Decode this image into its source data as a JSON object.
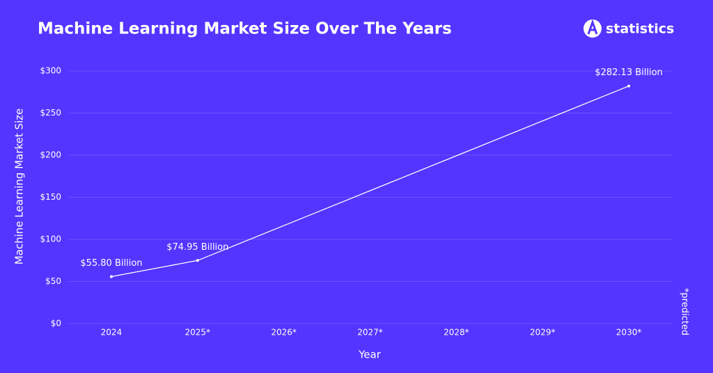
{
  "chart_data": {
    "type": "line",
    "title": "Machine Learning Market Size Over The Years",
    "brand": "statistics",
    "footnote": "*predicted",
    "x_label": "Year",
    "y_label": "Machine Learning Market Size",
    "categories": [
      "2024",
      "2025*",
      "2026*",
      "2027*",
      "2028*",
      "2029*",
      "2030*"
    ],
    "values": [
      55.8,
      74.95,
      116.39,
      157.82,
      199.26,
      240.69,
      282.13
    ],
    "value_labels": [
      "$55.80 Billion",
      "$74.95 Billion",
      null,
      null,
      null,
      null,
      "$282.13 Billion"
    ],
    "color": "#ffffff",
    "ylim": [
      0,
      300
    ],
    "yticks": [
      {
        "value": 0,
        "label": "$0"
      },
      {
        "value": 50,
        "label": "$50"
      },
      {
        "value": 100,
        "label": "$100"
      },
      {
        "value": 150,
        "label": "$150"
      },
      {
        "value": 200,
        "label": "$200"
      },
      {
        "value": 250,
        "label": "$250"
      },
      {
        "value": 300,
        "label": "$300"
      }
    ],
    "grid": true
  }
}
